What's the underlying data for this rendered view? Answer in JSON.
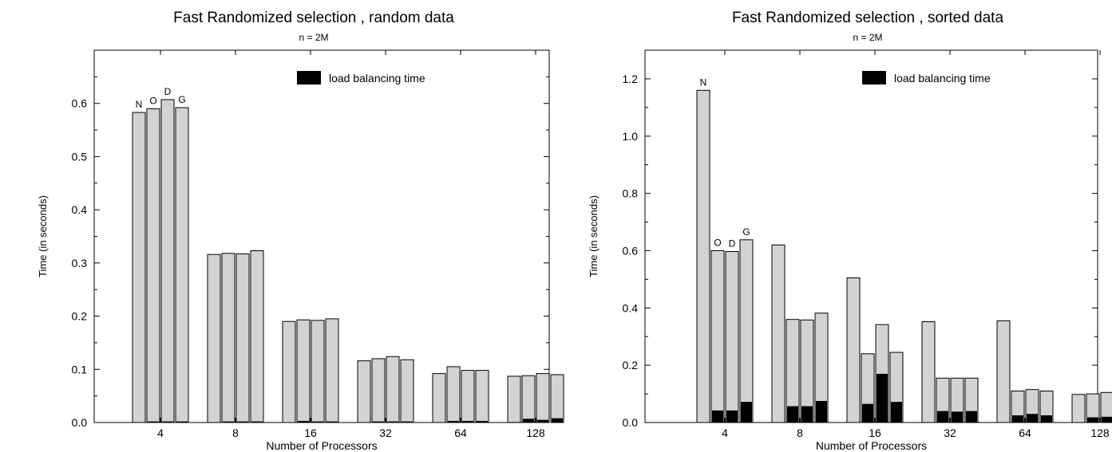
{
  "chart_data": [
    {
      "type": "bar",
      "title": "Fast Randomized selection , random data",
      "subtitle": "n = 2M",
      "xlabel": "Number of Processors",
      "ylabel": "Time (in seconds)",
      "ylim": [
        0,
        0.7
      ],
      "yticks": [
        "0.0",
        "0.1",
        "0.2",
        "0.3",
        "0.4",
        "0.5",
        "0.6"
      ],
      "categories": [
        "4",
        "8",
        "16",
        "32",
        "64",
        "128"
      ],
      "series_labels": [
        "N",
        "O",
        "D",
        "G"
      ],
      "legend": {
        "label": "load balancing time",
        "position": "top-right"
      },
      "total_color": "#d3d3d3",
      "lb_color": "#000000",
      "series": [
        {
          "name": "N",
          "total": [
            0.583,
            0.316,
            0.19,
            0.116,
            0.092,
            0.087
          ],
          "lb": [
            0.0,
            0.0,
            0.0,
            0.0,
            0.0,
            0.001
          ]
        },
        {
          "name": "O",
          "total": [
            0.59,
            0.318,
            0.193,
            0.12,
            0.105,
            0.088
          ],
          "lb": [
            0.002,
            0.002,
            0.003,
            0.002,
            0.003,
            0.007
          ]
        },
        {
          "name": "D",
          "total": [
            0.607,
            0.317,
            0.192,
            0.124,
            0.098,
            0.092
          ],
          "lb": [
            0.002,
            0.002,
            0.002,
            0.002,
            0.003,
            0.005
          ]
        },
        {
          "name": "G",
          "total": [
            0.592,
            0.323,
            0.195,
            0.118,
            0.098,
            0.09
          ],
          "lb": [
            0.002,
            0.002,
            0.002,
            0.002,
            0.003,
            0.008
          ]
        }
      ]
    },
    {
      "type": "bar",
      "title": "Fast Randomized selection , sorted data",
      "subtitle": "n = 2M",
      "xlabel": "Number of Processors",
      "ylabel": "Time (in seconds)",
      "ylim": [
        0,
        1.3
      ],
      "yticks": [
        "0.0",
        "0.2",
        "0.4",
        "0.6",
        "0.8",
        "1.0",
        "1.2"
      ],
      "categories": [
        "4",
        "8",
        "16",
        "32",
        "64",
        "128"
      ],
      "series_labels": [
        "N",
        "O",
        "D",
        "G"
      ],
      "legend": {
        "label": "load balancing time",
        "position": "top-right"
      },
      "total_color": "#d3d3d3",
      "lb_color": "#000000",
      "series": [
        {
          "name": "N",
          "total": [
            1.16,
            0.62,
            0.505,
            0.352,
            0.355,
            0.098
          ],
          "lb": [
            0.0,
            0.0,
            0.0,
            0.0,
            0.0,
            0.0
          ]
        },
        {
          "name": "O",
          "total": [
            0.6,
            0.36,
            0.24,
            0.155,
            0.11,
            0.1
          ],
          "lb": [
            0.042,
            0.057,
            0.065,
            0.04,
            0.025,
            0.018
          ]
        },
        {
          "name": "D",
          "total": [
            0.597,
            0.358,
            0.342,
            0.155,
            0.115,
            0.105
          ],
          "lb": [
            0.042,
            0.057,
            0.17,
            0.038,
            0.03,
            0.02
          ]
        },
        {
          "name": "G",
          "total": [
            0.638,
            0.382,
            0.245,
            0.155,
            0.11,
            0.108
          ],
          "lb": [
            0.072,
            0.075,
            0.072,
            0.04,
            0.025,
            0.02
          ]
        }
      ]
    }
  ]
}
